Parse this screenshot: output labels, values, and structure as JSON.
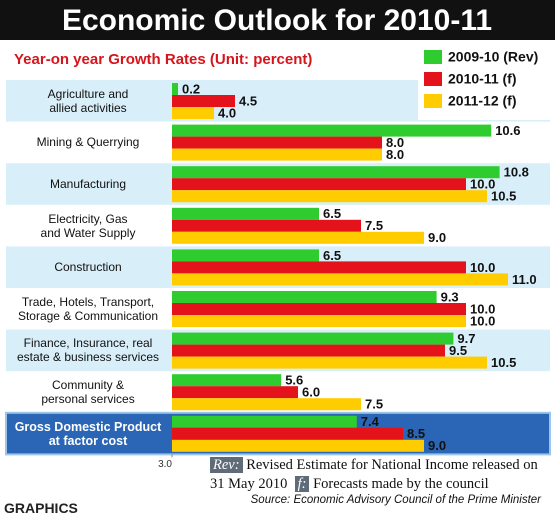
{
  "chart_data": {
    "type": "bar",
    "orientation": "horizontal",
    "title": "Economic Outlook for 2010-11",
    "subtitle": "Year-on year Growth Rates (Unit: percent)",
    "categories": [
      "Agriculture and\nallied activities",
      "Mining & Querrying",
      "Manufacturing",
      "Electricity, Gas\nand Water Supply",
      "Construction",
      "Trade, Hotels, Transport,\nStorage & Communication",
      "Finance, Insurance, real\nestate & business services",
      "Community &\npersonal services",
      "Gross Domestic Product\nat factor cost"
    ],
    "series": [
      {
        "name": "2009-10 (Rev)",
        "color": "#2ecc2e",
        "values": [
          0.2,
          10.6,
          10.8,
          6.5,
          6.5,
          9.3,
          9.7,
          5.6,
          7.4
        ],
        "value_labels": [
          "0.2",
          "10.6",
          "10.8",
          "6.5",
          "6.5",
          "9.3",
          "9.7",
          "5.6",
          "7.4"
        ]
      },
      {
        "name": "2010-11 (f)",
        "color": "#e3121b",
        "values": [
          4.5,
          8.0,
          10.0,
          7.5,
          10.0,
          10.0,
          9.5,
          6.0,
          8.5
        ],
        "value_labels": [
          "4.5",
          "8.0",
          "10.0",
          "7.5",
          "10.0",
          "10.0",
          "9.5",
          "6.0",
          "8.5"
        ]
      },
      {
        "name": "2011-12 (f)",
        "color": "#ffcc00",
        "values": [
          4.0,
          8.0,
          10.5,
          9.0,
          11.0,
          10.0,
          10.5,
          7.5,
          9.0
        ],
        "value_labels": [
          "4.0",
          "8.0",
          "10.5",
          "9.0",
          "11.0",
          "10.0",
          "10.5",
          "7.5",
          "9.0"
        ]
      }
    ],
    "xlim": [
      3,
      12
    ],
    "xticks": [
      {
        "value": 3,
        "label": "3.0"
      }
    ],
    "legend": "top-right",
    "notes": [
      {
        "key": "Rev:",
        "text": "Revised Estimate for National Income released on 31 May 2010"
      },
      {
        "key": "f:",
        "text": "Forecasts made by the council"
      }
    ],
    "source": "Source: Economic Advisory Council of the Prime Minister",
    "credit": "GRAPHICS"
  }
}
